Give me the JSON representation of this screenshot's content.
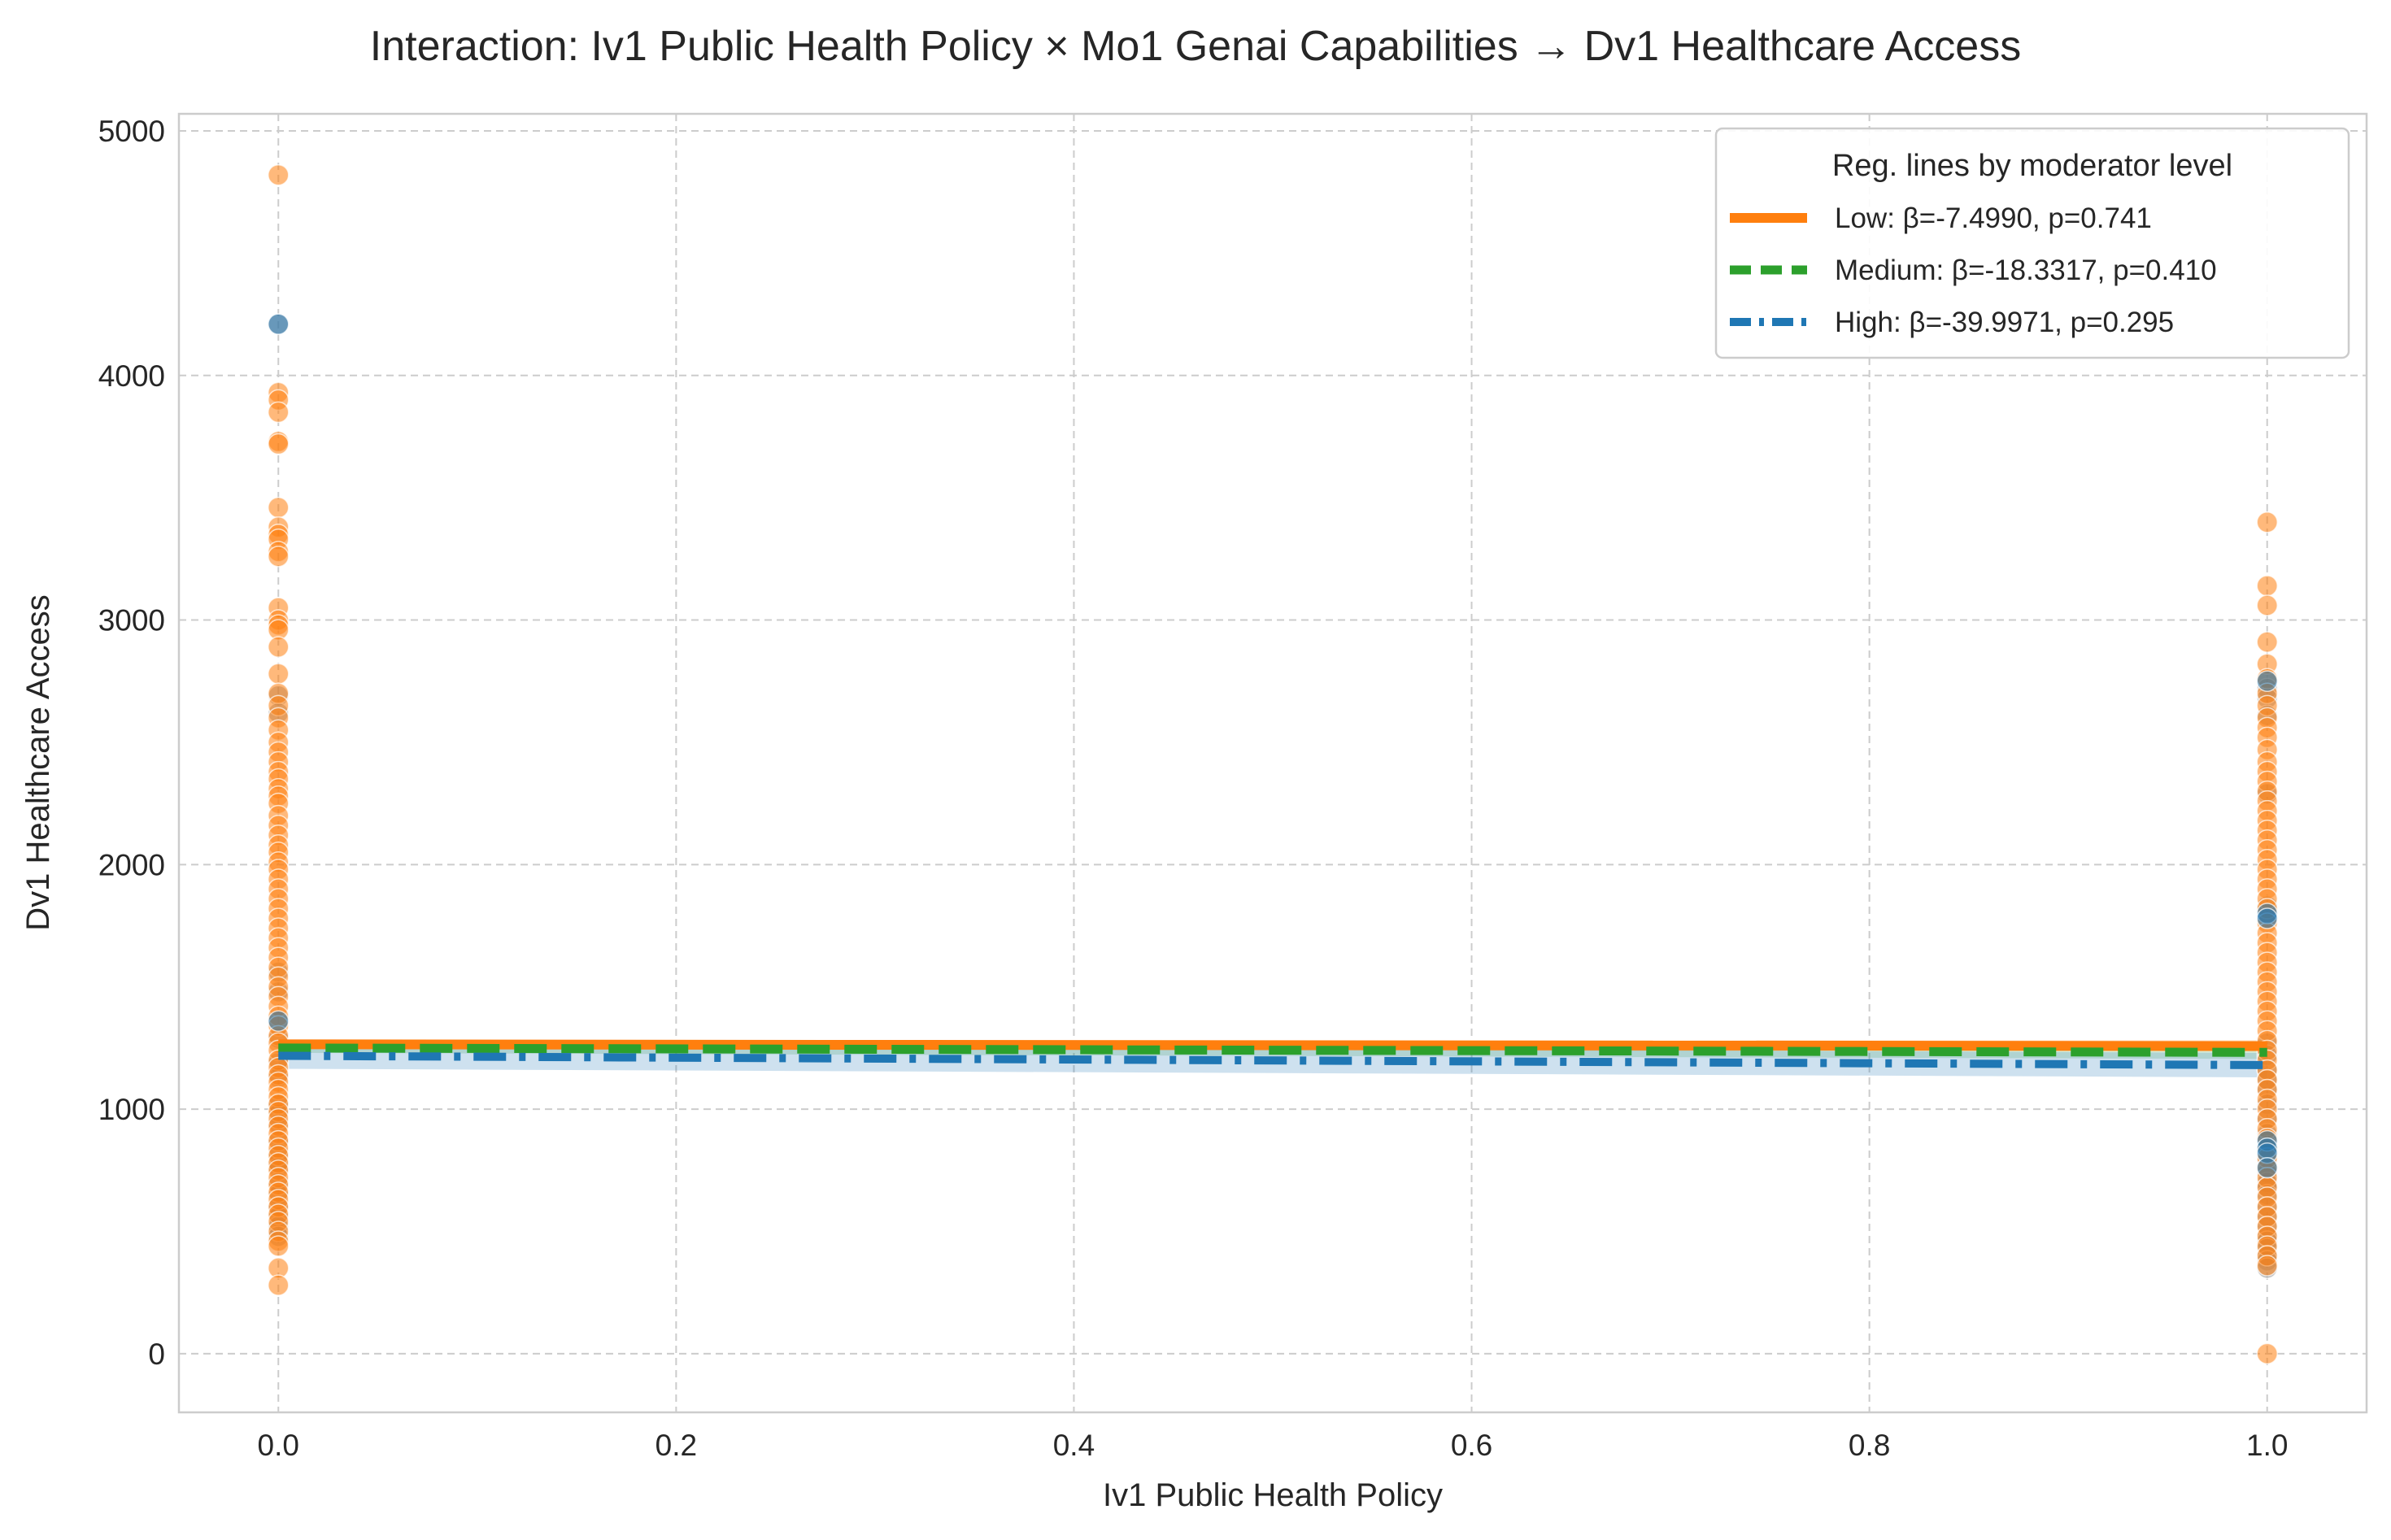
{
  "chart_data": {
    "type": "scatter",
    "title": "Interaction: Iv1 Public Health Policy × Mo1 Genai Capabilities → Dv1 Healthcare Access",
    "xlabel": "Iv1 Public Health Policy",
    "ylabel": "Dv1 Healthcare Access",
    "xlim": [
      -0.05,
      1.05
    ],
    "ylim": [
      -240,
      5070
    ],
    "x_ticks": [
      0.0,
      0.2,
      0.4,
      0.6,
      0.8,
      1.0
    ],
    "x_tick_labels": [
      "0.0",
      "0.2",
      "0.4",
      "0.6",
      "0.8",
      "1.0"
    ],
    "y_ticks": [
      0,
      1000,
      2000,
      3000,
      4000,
      5000
    ],
    "y_tick_labels": [
      "0",
      "1000",
      "2000",
      "3000",
      "4000",
      "5000"
    ],
    "grid": true,
    "legend_position": "top-right",
    "legend_title": "Reg. lines by moderator level",
    "colors": {
      "low": "#ff7f0e",
      "medium": "#2ca02c",
      "high": "#1f77b4",
      "point_gray": "#8c8c8c"
    },
    "regression_lines": [
      {
        "name": "Low: β=-7.4990, p=0.741",
        "level": "low",
        "x": [
          0,
          1
        ],
        "y": [
          1265,
          1258
        ],
        "ci": [
          1245,
          1280,
          1235,
          1282
        ],
        "style": "solid"
      },
      {
        "name": "Medium: β=-18.3317, p=0.410",
        "level": "medium",
        "x": [
          0,
          1
        ],
        "y": [
          1250,
          1232
        ],
        "ci": [
          1230,
          1268,
          1205,
          1255
        ],
        "style": "dashed"
      },
      {
        "name": "High: β=-39.9971, p=0.295",
        "level": "high",
        "x": [
          0,
          1
        ],
        "y": [
          1218,
          1180
        ],
        "ci": [
          1165,
          1265,
          1130,
          1230
        ],
        "style": "dashdot"
      }
    ],
    "points": {
      "low_x0": [
        4820,
        3930,
        3900,
        3850,
        3730,
        3720,
        3460,
        3380,
        3350,
        3330,
        3280,
        3260,
        3050,
        3000,
        2980,
        2960,
        2890,
        2780,
        2700,
        2650,
        2600,
        2550,
        2500,
        2460,
        2420,
        2380,
        2350,
        2310,
        2280,
        2250,
        2200,
        2160,
        2120,
        2080,
        2050,
        2010,
        1980,
        1940,
        1900,
        1860,
        1820,
        1780,
        1740,
        1700,
        1660,
        1620,
        1580,
        1540,
        1500,
        1460,
        1420,
        1380,
        1340,
        1300,
        1270,
        1240,
        1200,
        1170,
        1140,
        1110,
        1080,
        1050,
        1020,
        990,
        960,
        930,
        900,
        870,
        840,
        810,
        780,
        750,
        720,
        690,
        660,
        630,
        600,
        570,
        540,
        500,
        460,
        440,
        350,
        280
      ],
      "high_x0": [
        4210,
        2690,
        2620,
        1560,
        1480,
        1360,
        1290,
        1190,
        1130,
        1020,
        980,
        940,
        870,
        820,
        780,
        760,
        700,
        650,
        600,
        560,
        520,
        480
      ],
      "low_x1": [
        3400,
        3140,
        3060,
        2910,
        2820,
        2760,
        2700,
        2650,
        2600,
        2560,
        2520,
        2470,
        2420,
        2380,
        2340,
        2300,
        2260,
        2220,
        2180,
        2140,
        2100,
        2060,
        2020,
        1980,
        1940,
        1900,
        1860,
        1820,
        1760,
        1720,
        1680,
        1640,
        1600,
        1560,
        1520,
        1480,
        1440,
        1400,
        1360,
        1320,
        1280,
        1240,
        1200,
        1160,
        1120,
        1080,
        1040,
        1000,
        960,
        920,
        880,
        840,
        800,
        760,
        720,
        680,
        640,
        600,
        560,
        520,
        480,
        440,
        400,
        360,
        0
      ],
      "high_x1": [
        2750,
        2720,
        2680,
        2610,
        2290,
        1830,
        1800,
        1780,
        1270,
        1220,
        1160,
        1120,
        1080,
        1020,
        960,
        900,
        870,
        850,
        820,
        790,
        760,
        740,
        700,
        680,
        650,
        600,
        560,
        520,
        480,
        460,
        430,
        400,
        380,
        350
      ]
    }
  }
}
